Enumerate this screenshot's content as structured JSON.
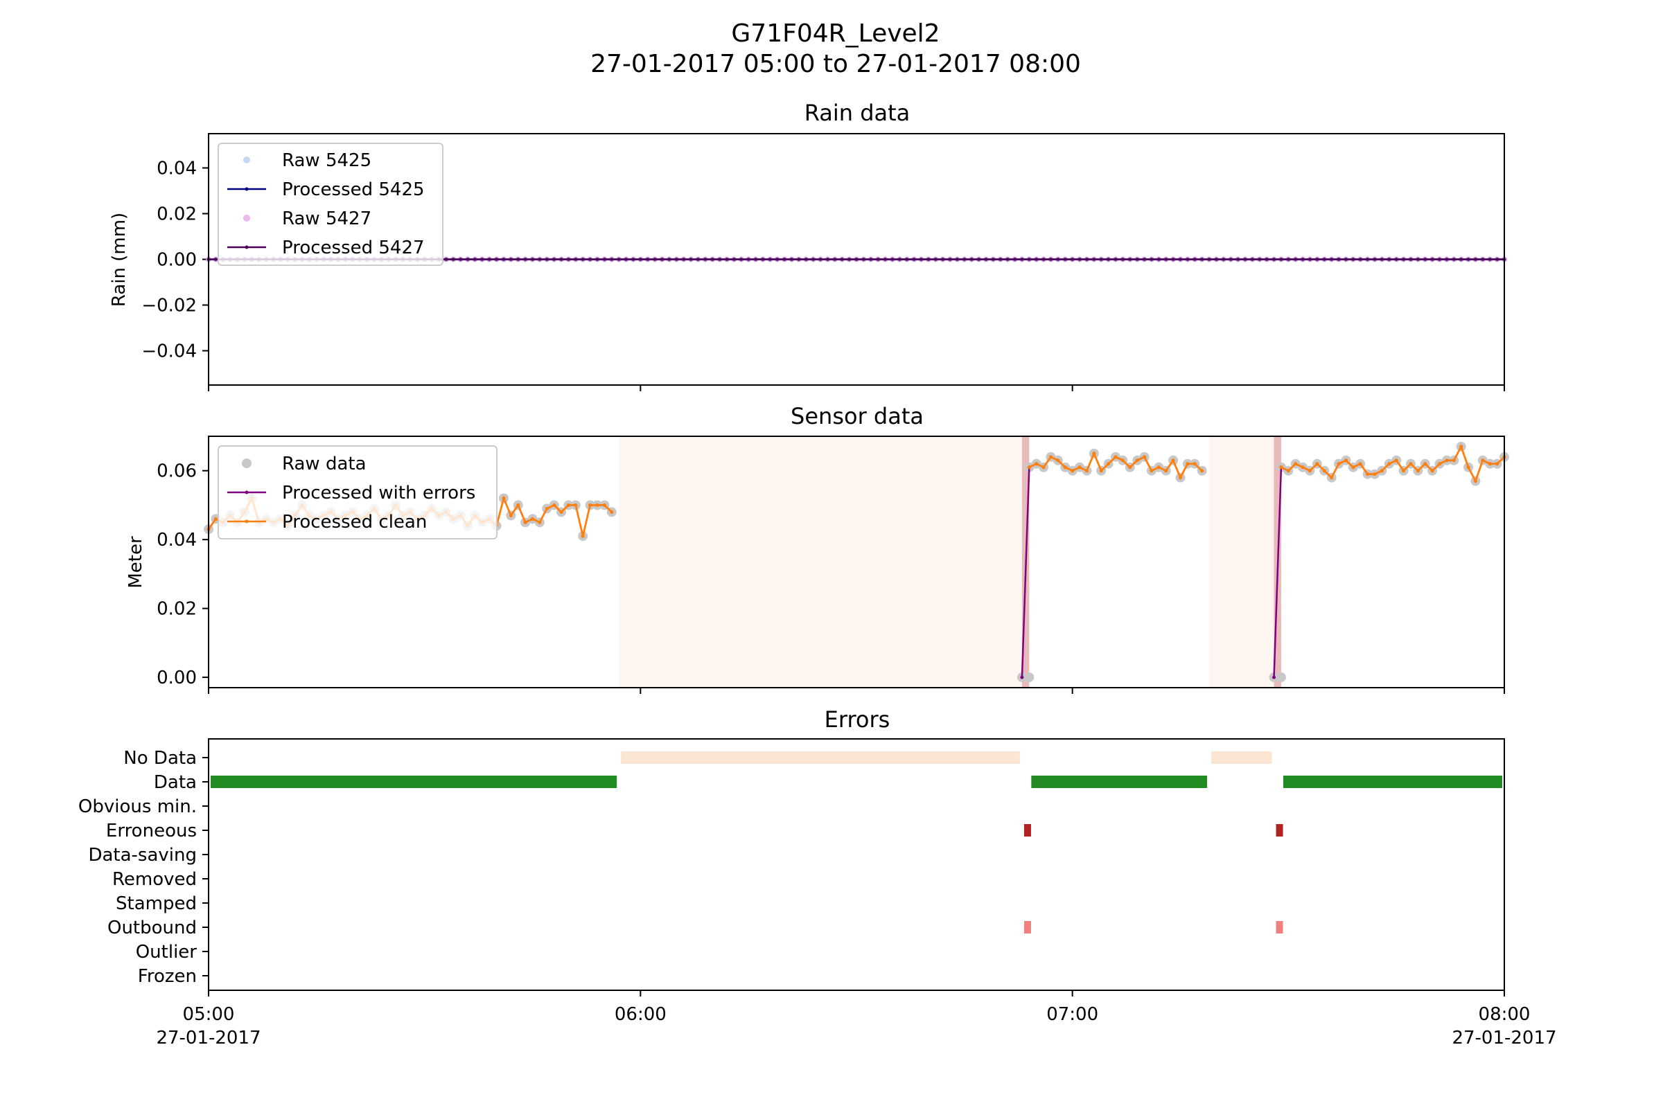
{
  "figure": {
    "title_line1": "G71F04R_Level2",
    "title_line2": "27-01-2017 05:00 to 27-01-2017 08:00"
  },
  "x_axis": {
    "ticks": [
      {
        "time": "05:00",
        "label": "05:00",
        "date": "27-01-2017"
      },
      {
        "time": "06:00",
        "label": "06:00",
        "date": ""
      },
      {
        "time": "07:00",
        "label": "07:00",
        "date": ""
      },
      {
        "time": "08:00",
        "label": "08:00",
        "date": "27-01-2017"
      }
    ]
  },
  "colors": {
    "raw_5425": "#aec7e8",
    "processed_5425": "#000080",
    "raw_5427": "#da70d6",
    "processed_5427": "#4b0055",
    "raw_data": "#c8c8c8",
    "processed_errors": "#800080",
    "processed_clean": "#ff7f0e",
    "no_data": "#fbe6d3",
    "data": "#228b22",
    "erroneous": "#b22222",
    "outbound": "#f08080",
    "error_span": "#e2a9a9"
  },
  "chart_data": [
    {
      "type": "line",
      "title": "Rain data",
      "xlabel": "",
      "ylabel": "Rain (mm)",
      "xlim": [
        "05:00",
        "08:00"
      ],
      "ylim": [
        -0.055,
        0.055
      ],
      "yticks": [
        "0.04",
        "0.02",
        "0.00",
        "−0.02",
        "−0.04"
      ],
      "ytick_values": [
        0.04,
        0.02,
        0.0,
        -0.02,
        -0.04
      ],
      "grid": false,
      "legend_position": "top-left",
      "series": [
        {
          "name": "Raw 5425",
          "style": "markers",
          "x_range": [
            "05:00",
            "08:00"
          ],
          "interval_min": 1,
          "value": 0.0
        },
        {
          "name": "Processed 5425",
          "style": "line+markers",
          "x_range": [
            "05:00",
            "08:00"
          ],
          "interval_min": 1,
          "value": 0.0
        },
        {
          "name": "Raw 5427",
          "style": "markers",
          "x_range": [
            "05:00",
            "08:00"
          ],
          "interval_min": 1,
          "value": 0.0
        },
        {
          "name": "Processed 5427",
          "style": "line+markers",
          "x_range": [
            "05:00",
            "08:00"
          ],
          "interval_min": 1,
          "value": 0.0
        }
      ]
    },
    {
      "type": "line",
      "title": "Sensor data",
      "xlabel": "",
      "ylabel": "Meter",
      "xlim": [
        "05:00",
        "08:00"
      ],
      "ylim": [
        -0.003,
        0.07
      ],
      "yticks": [
        "0.06",
        "0.04",
        "0.02",
        "0.00"
      ],
      "ytick_values": [
        0.06,
        0.04,
        0.02,
        0.0
      ],
      "grid": false,
      "legend_position": "top-left",
      "legend": [
        "Raw data",
        "Processed with errors",
        "Processed clean"
      ],
      "no_data_spans": [
        [
          "05:57",
          "06:53"
        ],
        [
          "07:19",
          "07:28"
        ]
      ],
      "error_spans": [
        [
          "06:53",
          "06:54"
        ],
        [
          "07:28",
          "07:29"
        ]
      ],
      "series": [
        {
          "name": "Processed clean",
          "segments": [
            {
              "x": [
                "05:00",
                "05:01",
                "05:02",
                "05:03",
                "05:04",
                "05:05",
                "05:06",
                "05:07",
                "05:08",
                "05:09",
                "05:10",
                "05:11",
                "05:12",
                "05:13",
                "05:14",
                "05:15",
                "05:16",
                "05:17",
                "05:18",
                "05:19",
                "05:20",
                "05:21",
                "05:22",
                "05:23",
                "05:24",
                "05:25",
                "05:26",
                "05:27",
                "05:28",
                "05:29",
                "05:30",
                "05:31",
                "05:32",
                "05:33",
                "05:34",
                "05:35",
                "05:36",
                "05:37",
                "05:38",
                "05:39",
                "05:40",
                "05:41",
                "05:42",
                "05:43",
                "05:44",
                "05:45",
                "05:46",
                "05:47",
                "05:48",
                "05:49",
                "05:50",
                "05:51",
                "05:52",
                "05:53",
                "05:54",
                "05:55",
                "05:56"
              ],
              "y": [
                0.043,
                0.046,
                0.045,
                0.047,
                0.045,
                0.048,
                0.052,
                0.045,
                0.046,
                0.045,
                0.046,
                0.044,
                0.047,
                0.05,
                0.047,
                0.046,
                0.047,
                0.048,
                0.046,
                0.047,
                0.048,
                0.046,
                0.047,
                0.049,
                0.046,
                0.047,
                0.05,
                0.047,
                0.048,
                0.046,
                0.047,
                0.049,
                0.047,
                0.048,
                0.046,
                0.047,
                0.044,
                0.047,
                0.045,
                0.046,
                0.044,
                0.052,
                0.047,
                0.05,
                0.045,
                0.046,
                0.045,
                0.049,
                0.05,
                0.048,
                0.05,
                0.05,
                0.041,
                0.05,
                0.05,
                0.05,
                0.048
              ]
            },
            {
              "x": [
                "06:54",
                "06:55",
                "06:56",
                "06:57",
                "06:58",
                "06:59",
                "07:00",
                "07:01",
                "07:02",
                "07:03",
                "07:04",
                "07:05",
                "07:06",
                "07:07",
                "07:08",
                "07:09",
                "07:10",
                "07:11",
                "07:12",
                "07:13",
                "07:14",
                "07:15",
                "07:16",
                "07:17",
                "07:18"
              ],
              "y": [
                0.061,
                0.062,
                0.061,
                0.064,
                0.063,
                0.061,
                0.06,
                0.061,
                0.06,
                0.065,
                0.06,
                0.062,
                0.064,
                0.063,
                0.061,
                0.063,
                0.064,
                0.06,
                0.061,
                0.06,
                0.063,
                0.058,
                0.062,
                0.062,
                0.06
              ]
            },
            {
              "x": [
                "07:29",
                "07:30",
                "07:31",
                "07:32",
                "07:33",
                "07:34",
                "07:35",
                "07:36",
                "07:37",
                "07:38",
                "07:39",
                "07:40",
                "07:41",
                "07:42",
                "07:43",
                "07:44",
                "07:45",
                "07:46",
                "07:47",
                "07:48",
                "07:49",
                "07:50",
                "07:51",
                "07:52",
                "07:53",
                "07:54",
                "07:55",
                "07:56",
                "07:57",
                "07:58",
                "07:59",
                "08:00"
              ],
              "y": [
                0.061,
                0.06,
                0.062,
                0.061,
                0.06,
                0.062,
                0.06,
                0.058,
                0.062,
                0.063,
                0.061,
                0.062,
                0.059,
                0.059,
                0.06,
                0.062,
                0.063,
                0.06,
                0.062,
                0.06,
                0.062,
                0.06,
                0.062,
                0.063,
                0.063,
                0.067,
                0.061,
                0.057,
                0.063,
                0.062,
                0.062,
                0.064
              ]
            }
          ]
        },
        {
          "name": "Processed with errors",
          "segments": [
            {
              "x": [
                "06:53",
                "06:54"
              ],
              "y": [
                0.0,
                0.061
              ]
            },
            {
              "x": [
                "07:28",
                "07:29"
              ],
              "y": [
                0.0,
                0.061
              ]
            }
          ]
        },
        {
          "name": "Raw data",
          "extra_points": [
            {
              "x": "06:53",
              "y": 0.0
            },
            {
              "x": "06:54",
              "y": 0.0
            },
            {
              "x": "07:28",
              "y": 0.0
            },
            {
              "x": "07:29",
              "y": 0.0
            }
          ]
        }
      ]
    },
    {
      "type": "timeline",
      "title": "Errors",
      "xlim": [
        "05:00",
        "08:00"
      ],
      "categories": [
        "No Data",
        "Data",
        "Obvious min.",
        "Erroneous",
        "Data-saving",
        "Removed",
        "Stamped",
        "Outbound",
        "Outlier",
        "Frozen"
      ],
      "bars": [
        {
          "category": "No Data",
          "start": "05:57",
          "end": "06:53",
          "color_key": "no_data"
        },
        {
          "category": "No Data",
          "start": "07:19",
          "end": "07:28",
          "color_key": "no_data"
        },
        {
          "category": "Data",
          "start": "05:00",
          "end": "05:57",
          "color_key": "data"
        },
        {
          "category": "Data",
          "start": "06:54",
          "end": "07:19",
          "color_key": "data"
        },
        {
          "category": "Data",
          "start": "07:29",
          "end": "08:00",
          "color_key": "data"
        },
        {
          "category": "Erroneous",
          "start": "06:53",
          "end": "06:54",
          "color_key": "erroneous"
        },
        {
          "category": "Erroneous",
          "start": "07:28",
          "end": "07:29",
          "color_key": "erroneous"
        },
        {
          "category": "Outbound",
          "start": "06:53",
          "end": "06:54",
          "color_key": "outbound"
        },
        {
          "category": "Outbound",
          "start": "07:28",
          "end": "07:29",
          "color_key": "outbound"
        }
      ]
    }
  ]
}
